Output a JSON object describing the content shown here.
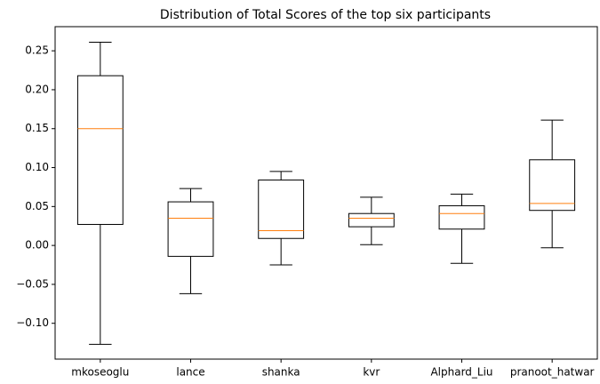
{
  "chart_data": {
    "type": "box",
    "title": "Distribution of Total Scores of the top six participants",
    "categories": [
      "mkoseoglu",
      "lance",
      "shanka",
      "kvr",
      "Alphard_Liu",
      "pranoot_hatwar"
    ],
    "boxes": [
      {
        "low": -0.127,
        "q1": 0.027,
        "median": 0.15,
        "q3": 0.218,
        "high": 0.261
      },
      {
        "low": -0.062,
        "q1": -0.014,
        "median": 0.035,
        "q3": 0.056,
        "high": 0.073
      },
      {
        "low": -0.025,
        "q1": 0.009,
        "median": 0.019,
        "q3": 0.084,
        "high": 0.095
      },
      {
        "low": 0.001,
        "q1": 0.024,
        "median": 0.035,
        "q3": 0.041,
        "high": 0.062
      },
      {
        "low": -0.023,
        "q1": 0.021,
        "median": 0.041,
        "q3": 0.051,
        "high": 0.066
      },
      {
        "low": -0.003,
        "q1": 0.045,
        "median": 0.054,
        "q3": 0.11,
        "high": 0.161
      }
    ],
    "color": "#000000",
    "median_color": "#ff7f0e",
    "ylim": [
      -0.146,
      0.281
    ],
    "yticks": [
      {
        "value": -0.1,
        "label": "−0.10"
      },
      {
        "value": -0.05,
        "label": "−0.05"
      },
      {
        "value": 0.0,
        "label": "0.00"
      },
      {
        "value": 0.05,
        "label": "0.05"
      },
      {
        "value": 0.1,
        "label": "0.10"
      },
      {
        "value": 0.15,
        "label": "0.15"
      },
      {
        "value": 0.2,
        "label": "0.20"
      },
      {
        "value": 0.25,
        "label": "0.25"
      }
    ]
  }
}
